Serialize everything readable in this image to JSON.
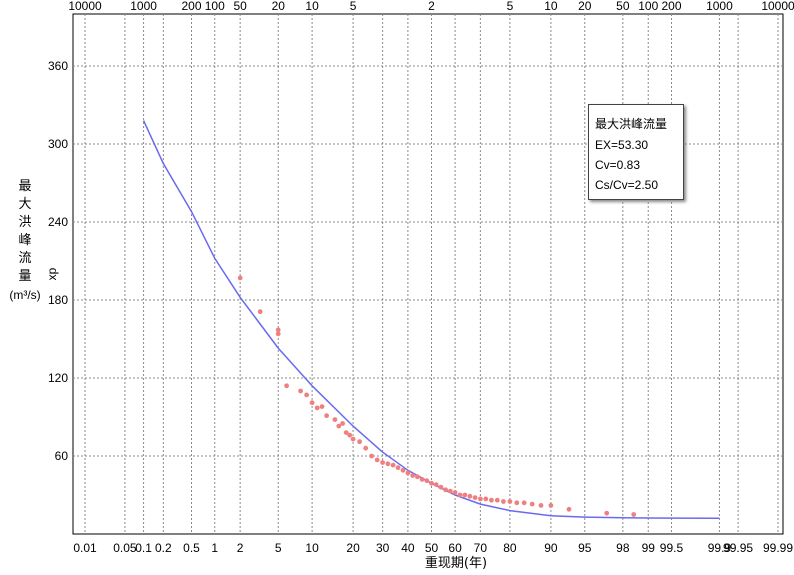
{
  "chart_data": {
    "type": "scatter",
    "ylabel_vertical": [
      "最",
      "大",
      "洪",
      "峰",
      "流",
      "量"
    ],
    "ylabel_unit": "(m³/s)",
    "ylabel_small": "xp",
    "xlabel": "重现期(年)",
    "y_ticks": [
      "60",
      "120",
      "180",
      "240",
      "300",
      "360"
    ],
    "bottom_ticks": [
      "0.01",
      "0.05",
      "0.1",
      "0.2",
      "0.5",
      "1",
      "2",
      "5",
      "10",
      "20",
      "30",
      "40",
      "50",
      "60",
      "70",
      "80",
      "90",
      "95",
      "98",
      "99",
      "99.5",
      "99.9",
      "99.95",
      "99.99"
    ],
    "top_ticks": [
      "10000",
      "1000",
      "200",
      "100",
      "50",
      "20",
      "10",
      "5",
      "2",
      "5",
      "10",
      "20",
      "50",
      "100",
      "200",
      "1000",
      "10000"
    ],
    "legend": {
      "title": "最大洪峰流量",
      "lines": [
        "EX=53.30",
        "Cv=0.83",
        "Cs/Cv=2.50"
      ]
    },
    "curve": {
      "p": [
        0.1,
        0.2,
        0.5,
        1,
        2,
        5,
        10,
        20,
        30,
        40,
        50,
        60,
        70,
        80,
        90,
        95,
        98,
        99,
        99.5,
        99.9
      ],
      "y": [
        318,
        285,
        248,
        212,
        182,
        143,
        114,
        83,
        63,
        49,
        39,
        30,
        23,
        18,
        14,
        13,
        12.5,
        12.3,
        12.2,
        12.1
      ]
    },
    "points": {
      "p": [
        2,
        3.3,
        5,
        5,
        6,
        8,
        9,
        10,
        11,
        12,
        13,
        15,
        16,
        17,
        18,
        19,
        20,
        22,
        24,
        26,
        28,
        30,
        32,
        34,
        36,
        38,
        40,
        42,
        44,
        46,
        48,
        50,
        52,
        54,
        56,
        58,
        60,
        62,
        64,
        66,
        68,
        70,
        72,
        74,
        76,
        78,
        80,
        82,
        84,
        86,
        88,
        90,
        93,
        97,
        98.5
      ],
      "y": [
        197,
        171,
        157,
        154,
        114,
        110,
        107,
        101,
        97,
        98,
        91,
        88,
        83,
        85,
        78,
        76,
        73,
        71,
        66,
        60,
        57,
        55,
        54,
        53,
        51,
        49,
        47,
        45,
        44,
        42,
        41,
        39,
        38,
        36,
        34,
        33,
        32,
        30,
        30,
        29,
        28,
        27,
        27,
        26,
        26,
        25,
        25,
        24,
        24,
        23,
        22,
        22,
        19,
        16,
        15
      ]
    },
    "ylim": [
      0,
      400
    ],
    "grid": true
  }
}
